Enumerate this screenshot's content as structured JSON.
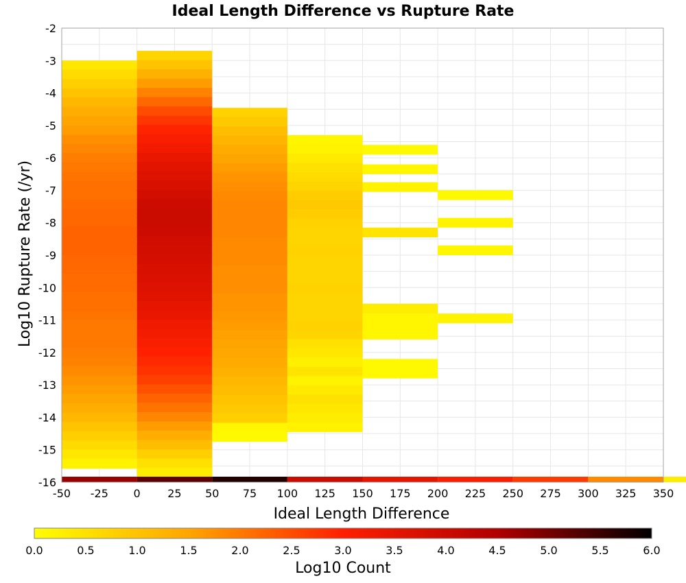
{
  "chart_data": {
    "type": "heatmap",
    "title": "Ideal Length Difference vs Rupture Rate",
    "xlabel": "Ideal Length Difference",
    "ylabel": "Log10 Rupture Rate (/yr)",
    "xlim": [
      -50,
      350
    ],
    "ylim": [
      -16,
      -2
    ],
    "x_ticks": [
      -50,
      -25,
      0,
      25,
      50,
      75,
      100,
      125,
      150,
      175,
      200,
      225,
      250,
      275,
      300,
      325,
      350
    ],
    "y_ticks": [
      -2,
      -3,
      -4,
      -5,
      -6,
      -7,
      -8,
      -9,
      -10,
      -11,
      -12,
      -13,
      -14,
      -15,
      -16
    ],
    "grid": true,
    "colorbar": {
      "label": "Log10 Count",
      "range": [
        0,
        6
      ],
      "ticks": [
        0.0,
        0.5,
        1.0,
        1.5,
        2.0,
        2.5,
        3.0,
        3.5,
        4.0,
        4.5,
        5.0,
        5.5,
        6.0
      ],
      "tick_labels": [
        "0.0",
        "0.5",
        "1.0",
        "1.5",
        "2.0",
        "2.5",
        "3.0",
        "3.5",
        "4.0",
        "4.5",
        "5.0",
        "5.5",
        "6.0"
      ],
      "colors": [
        "#ffff00",
        "#ffa500",
        "#ff2000",
        "#b00000",
        "#000000"
      ]
    },
    "bin_width": 50,
    "y_bin_height": 0.2857,
    "columns": [
      {
        "x_start": -50,
        "y_top": -3.0,
        "values": [
          0.4,
          0.6,
          0.8,
          1.0,
          1.2,
          1.35,
          1.5,
          1.6,
          1.75,
          1.85,
          1.95,
          2.0,
          2.05,
          2.1,
          2.1,
          2.15,
          2.2,
          2.2,
          2.25,
          2.25,
          2.25,
          2.2,
          2.2,
          2.15,
          2.15,
          2.1,
          2.1,
          2.05,
          2.0,
          2.0,
          2.0,
          1.95,
          1.9,
          1.8,
          1.7,
          1.6,
          1.5,
          1.35,
          1.2,
          1.0,
          0.8,
          0.6,
          0.4,
          0.2
        ]
      },
      {
        "x_start": 0,
        "y_top": -2.7,
        "values": [
          0.7,
          1.0,
          1.3,
          1.6,
          1.9,
          2.2,
          2.5,
          2.75,
          2.95,
          3.1,
          3.25,
          3.4,
          3.55,
          3.65,
          3.75,
          3.85,
          3.95,
          4.0,
          4.0,
          3.95,
          3.9,
          3.85,
          3.8,
          3.75,
          3.7,
          3.65,
          3.6,
          3.5,
          3.4,
          3.3,
          3.2,
          3.1,
          3.0,
          2.9,
          2.8,
          2.65,
          2.45,
          2.25,
          2.05,
          1.85,
          1.6,
          1.35,
          1.1,
          0.8,
          0.5,
          0.3
        ]
      },
      {
        "x_start": 50,
        "y_top": -3.6,
        "values": [
          0.0,
          0.0,
          0.0,
          0.75,
          0.9,
          1.1,
          1.25,
          1.4,
          1.5,
          1.6,
          1.7,
          1.75,
          1.8,
          1.85,
          1.85,
          1.85,
          1.85,
          1.8,
          1.8,
          1.8,
          1.75,
          1.75,
          1.75,
          1.7,
          1.7,
          1.65,
          1.6,
          1.55,
          1.5,
          1.45,
          1.4,
          1.3,
          1.2,
          1.1,
          1.0,
          0.9,
          0.8,
          0.15,
          0.1
        ]
      },
      {
        "x_start": 100,
        "y_top": -5.3,
        "values": [
          0.15,
          0.2,
          0.35,
          0.5,
          0.6,
          0.7,
          0.85,
          0.9,
          0.85,
          0.75,
          0.7,
          0.7,
          0.75,
          0.7,
          0.7,
          0.7,
          0.75,
          0.7,
          0.7,
          0.7,
          0.75,
          0.7,
          0.5,
          0.4,
          0.25,
          0.45,
          0.2,
          0.35,
          0.5,
          0.4,
          0.3,
          0.2
        ]
      },
      {
        "x_start": 150,
        "rects": [
          [
            -5.6,
            -5.9,
            0.1
          ],
          [
            -6.2,
            -6.5,
            0.15
          ],
          [
            -6.75,
            -7.05,
            0.2
          ],
          [
            -8.15,
            -8.45,
            0.45
          ],
          [
            -10.5,
            -10.8,
            0.3
          ],
          [
            -10.8,
            -11.6,
            0.15
          ],
          [
            -12.2,
            -12.8,
            0.1
          ]
        ]
      },
      {
        "x_start": 200,
        "rects": [
          [
            -7.0,
            -7.3,
            0.1
          ],
          [
            -7.85,
            -8.15,
            0.2
          ],
          [
            -8.7,
            -9.0,
            0.15
          ],
          [
            -10.8,
            -11.1,
            0.2
          ]
        ]
      }
    ],
    "bottom_strip": {
      "y": -16,
      "values": [
        4.7,
        5.2,
        5.7,
        4.0,
        3.5,
        3.1,
        2.7,
        1.8,
        0.3
      ]
    }
  }
}
